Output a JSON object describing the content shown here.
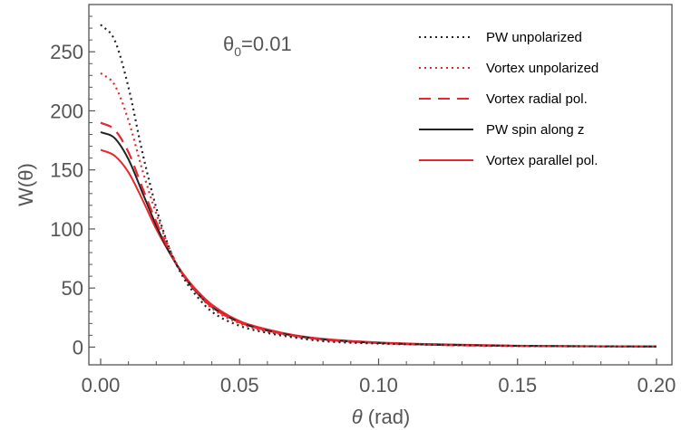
{
  "chart_data": {
    "type": "line",
    "title": "",
    "xlabel": {
      "symbol": "θ",
      "unit": " (rad)"
    },
    "ylabel": "W(θ)",
    "xlim": [
      0,
      0.2
    ],
    "ylim": [
      -15,
      290
    ],
    "x_ticks": [
      0.0,
      0.05,
      0.1,
      0.15,
      0.2
    ],
    "x_tick_labels": [
      "0.00",
      "0.05",
      "0.10",
      "0.15",
      "0.20"
    ],
    "y_ticks": [
      0,
      50,
      100,
      150,
      200,
      250
    ],
    "y_tick_labels": [
      "0",
      "50",
      "100",
      "150",
      "200",
      "250"
    ],
    "annotation": {
      "base": "θ",
      "sub": "0",
      "rest": "=0.01"
    },
    "legend_position": "top-right",
    "grid": false,
    "series": [
      {
        "name": "PW unpolarized",
        "color": "#222222",
        "style": "dotted",
        "x": [
          0.0,
          0.005,
          0.01,
          0.015,
          0.02,
          0.025,
          0.03,
          0.035,
          0.04,
          0.05,
          0.06,
          0.07,
          0.08,
          0.1,
          0.12,
          0.15,
          0.2
        ],
        "y": [
          273,
          260,
          220,
          165,
          118,
          82,
          58,
          42,
          30,
          18,
          12,
          8,
          5,
          3,
          2,
          1,
          0.5
        ]
      },
      {
        "name": "Vortex unpolarized",
        "color": "#e8262e",
        "style": "dotted",
        "x": [
          0.0,
          0.005,
          0.01,
          0.015,
          0.02,
          0.025,
          0.03,
          0.035,
          0.04,
          0.05,
          0.06,
          0.07,
          0.08,
          0.1,
          0.12,
          0.15,
          0.2
        ],
        "y": [
          232,
          222,
          192,
          150,
          113,
          82,
          60,
          45,
          33,
          20,
          13,
          9,
          6,
          3.5,
          2,
          1,
          0.5
        ]
      },
      {
        "name": "Vortex radial pol.",
        "color": "#e8262e",
        "style": "dashed",
        "x": [
          0.0,
          0.005,
          0.01,
          0.015,
          0.02,
          0.025,
          0.03,
          0.035,
          0.04,
          0.05,
          0.06,
          0.07,
          0.08,
          0.1,
          0.12,
          0.15,
          0.2
        ],
        "y": [
          190,
          184,
          165,
          135,
          106,
          80,
          60,
          46,
          34,
          21,
          14,
          9.5,
          6.5,
          3.5,
          2,
          1,
          0.5
        ]
      },
      {
        "name": "PW spin along z",
        "color": "#222222",
        "style": "solid",
        "x": [
          0.0,
          0.005,
          0.01,
          0.015,
          0.02,
          0.025,
          0.03,
          0.035,
          0.04,
          0.05,
          0.06,
          0.07,
          0.08,
          0.1,
          0.12,
          0.15,
          0.2
        ],
        "y": [
          182,
          177,
          159,
          131,
          103,
          79,
          60,
          45,
          34,
          21,
          14,
          9.5,
          6.5,
          3.5,
          2,
          1,
          0.5
        ]
      },
      {
        "name": "Vortex parallel pol.",
        "color": "#e8262e",
        "style": "solid",
        "x": [
          0.0,
          0.005,
          0.01,
          0.015,
          0.02,
          0.025,
          0.03,
          0.035,
          0.04,
          0.05,
          0.06,
          0.07,
          0.08,
          0.1,
          0.12,
          0.15,
          0.2
        ],
        "y": [
          167,
          162,
          148,
          125,
          100,
          79,
          61,
          47,
          36,
          22,
          15,
          10,
          7,
          4,
          2.5,
          1.2,
          0.5
        ]
      }
    ]
  }
}
